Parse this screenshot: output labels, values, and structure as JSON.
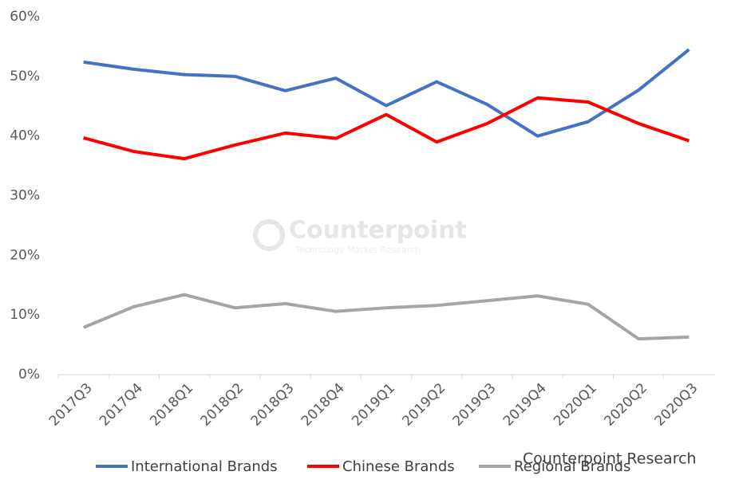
{
  "chart_data": {
    "type": "line",
    "categories": [
      "2017Q3",
      "2017Q4",
      "2018Q1",
      "2018Q2",
      "2018Q3",
      "2018Q4",
      "2019Q1",
      "2019Q2",
      "2019Q3",
      "2019Q4",
      "2020Q1",
      "2020Q2",
      "2020Q3"
    ],
    "series": [
      {
        "name": "International Brands",
        "color": "#4472c4",
        "values": [
          52.4,
          51.2,
          50.3,
          50.0,
          47.6,
          49.7,
          45.1,
          49.1,
          45.3,
          40.0,
          42.4,
          47.7,
          54.5
        ]
      },
      {
        "name": "Chinese Brands",
        "color": "#ff0000",
        "values": [
          39.7,
          37.4,
          36.2,
          38.5,
          40.5,
          39.6,
          43.6,
          39.0,
          42.1,
          46.4,
          45.7,
          42.1,
          39.2
        ]
      },
      {
        "name": "Regional Brands",
        "color": "#a5a5a5",
        "values": [
          7.9,
          11.4,
          13.4,
          11.2,
          11.9,
          10.6,
          11.2,
          11.6,
          12.4,
          13.2,
          11.8,
          6.0,
          6.3
        ]
      }
    ],
    "ylim": [
      0,
      60
    ],
    "yticks": [
      {
        "value": 0,
        "label": "0%"
      },
      {
        "value": 10,
        "label": "10%"
      },
      {
        "value": 20,
        "label": "20%"
      },
      {
        "value": 30,
        "label": "30%"
      },
      {
        "value": 40,
        "label": "40%"
      },
      {
        "value": 50,
        "label": "50%"
      },
      {
        "value": 60,
        "label": "60%"
      }
    ],
    "grid": false,
    "watermark": "Counterpoint",
    "watermark_subtitle": "Technology Market Research",
    "source": "Counterpoint Research"
  }
}
